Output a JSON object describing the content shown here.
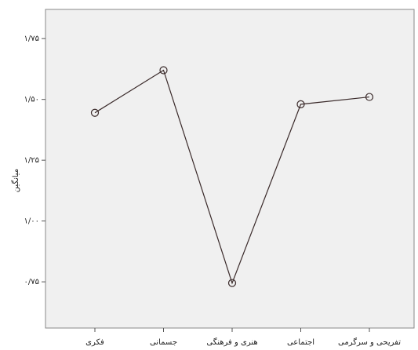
{
  "chart_data": {
    "type": "line",
    "y_label": "میانگین",
    "categories": [
      "فکری",
      "جسمانی",
      "هنری و فرهنگی",
      "اجتماعی",
      "تفریحی و سرگرمی"
    ],
    "values": [
      1.445,
      1.62,
      0.745,
      1.48,
      1.51
    ],
    "color": "#3a2a2a",
    "ylim": [
      0.56,
      1.87
    ],
    "yticks": [
      {
        "value": 0.75,
        "label": "۰/۷۵"
      },
      {
        "value": 1.0,
        "label": "۱/۰۰"
      },
      {
        "value": 1.25,
        "label": "۱/۲۵"
      },
      {
        "value": 1.5,
        "label": "۱/۵۰"
      },
      {
        "value": 1.75,
        "label": "۱/۷۵"
      }
    ]
  }
}
